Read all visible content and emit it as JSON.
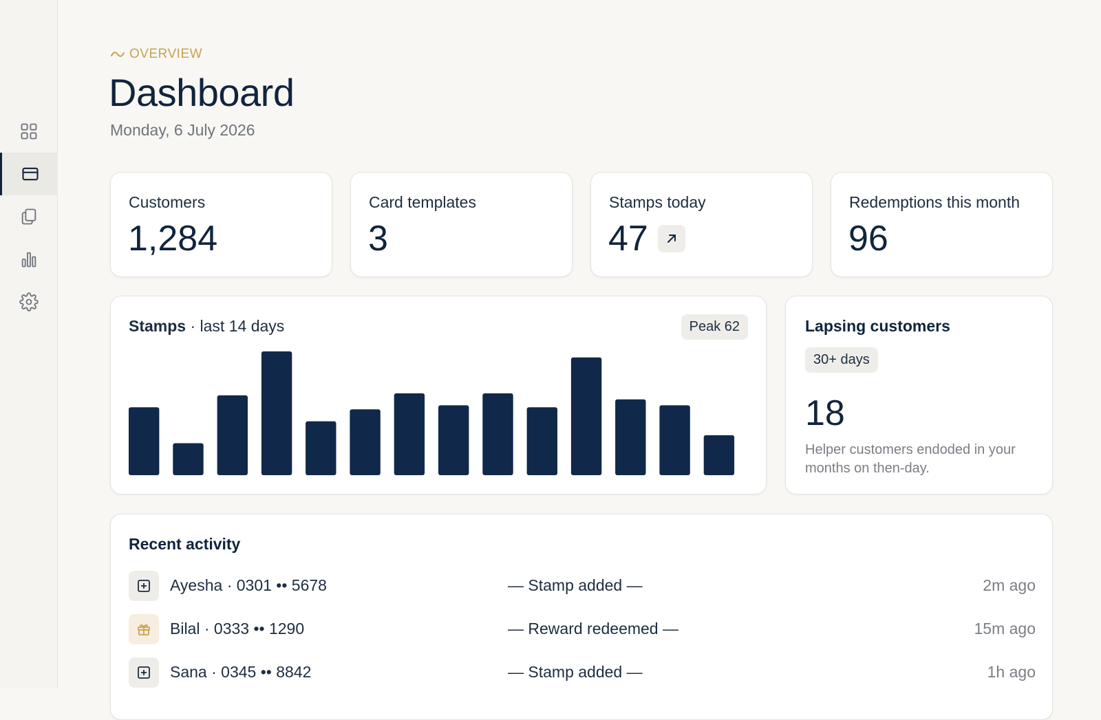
{
  "sidebar": {
    "items": [
      {
        "icon": "grid-icon",
        "active": false
      },
      {
        "icon": "card-icon",
        "active": true
      },
      {
        "icon": "copy-icon",
        "active": false
      },
      {
        "icon": "bar-chart-icon",
        "active": false
      },
      {
        "icon": "gear-icon",
        "active": false
      }
    ]
  },
  "header": {
    "eyebrow": "OVERVIEW",
    "title": "Dashboard",
    "date": "Monday, 6 July 2026"
  },
  "stats": [
    {
      "label": "Customers",
      "value": "1,284"
    },
    {
      "label": "Card templates",
      "value": "3"
    },
    {
      "label": "Stamps today",
      "value": "47",
      "trend_icon": "arrow-up-right-icon"
    },
    {
      "label": "Redemptions this month",
      "value": "96"
    }
  ],
  "stamps_chart": {
    "title_main": "Stamps",
    "title_sub": "· last 14 days",
    "peak_label": "Peak 62"
  },
  "chart_data": {
    "type": "bar",
    "values": [
      34,
      16,
      40,
      62,
      27,
      33,
      41,
      35,
      41,
      34,
      59,
      38,
      35,
      20
    ],
    "ylim": [
      0,
      62
    ],
    "color": "#10284a"
  },
  "lapsing": {
    "title": "Lapsing customers",
    "badge": "30+ days",
    "value": "18",
    "description": "Helper customers endoded in your months on then-day."
  },
  "activity": {
    "title": "Recent activity",
    "rows": [
      {
        "icon": "plus-square-icon",
        "who": "Ayesha · 0301 •• 5678",
        "event": "— Stamp added —",
        "time": "2m ago"
      },
      {
        "icon": "gift-icon",
        "who": "Bilal · 0333 •• 1290",
        "event": "— Reward redeemed —",
        "time": "15m ago"
      },
      {
        "icon": "plus-square-icon",
        "who": "Sana · 0345 •• 8842",
        "event": "— Stamp added —",
        "time": "1h ago"
      }
    ]
  },
  "colors": {
    "navy": "#10243d",
    "accent": "#c9a24f",
    "background": "#f8f7f4"
  }
}
